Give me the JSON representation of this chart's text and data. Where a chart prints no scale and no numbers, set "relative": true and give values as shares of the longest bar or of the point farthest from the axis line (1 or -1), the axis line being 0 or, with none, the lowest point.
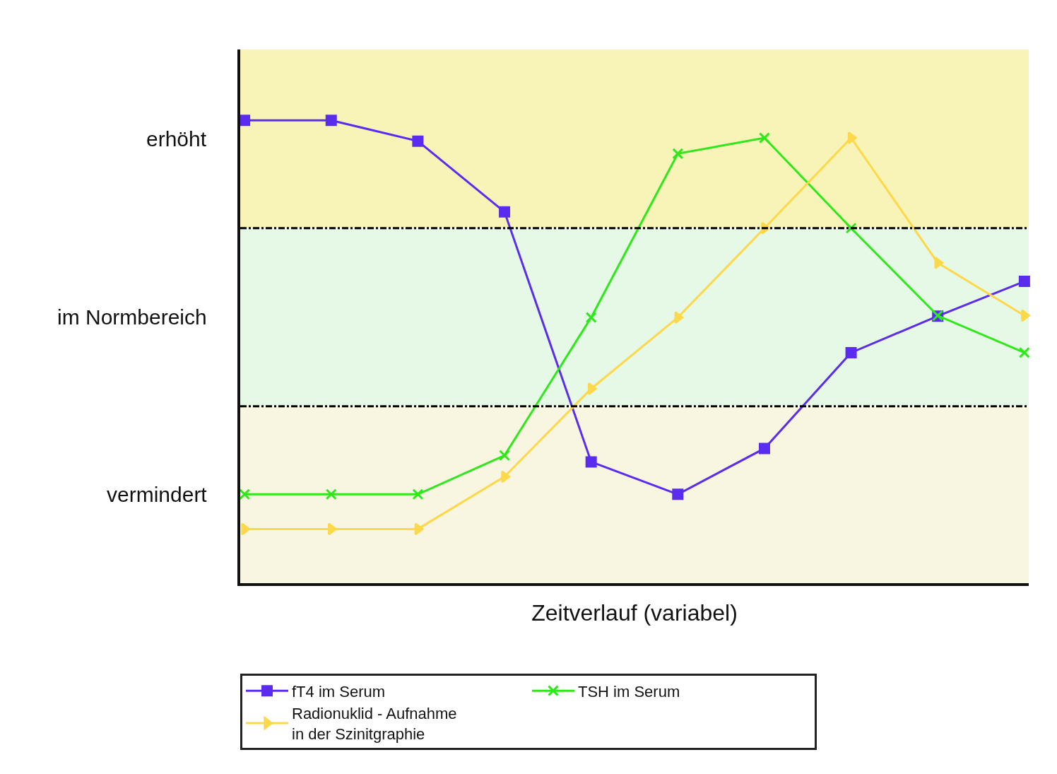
{
  "chart_data": {
    "type": "line",
    "relative": true,
    "xlabel": "Zeitverlauf (variabel)",
    "categories": [
      null,
      null,
      null,
      null,
      null,
      null,
      null,
      null,
      null,
      null
    ],
    "series": [
      {
        "name": "fT4 im Serum",
        "color": "#5a2cf0",
        "marker": "square",
        "values": [
          1.0,
          1.0,
          0.955,
          0.802,
          0.262,
          0.192,
          0.291,
          0.498,
          0.577,
          0.652
        ]
      },
      {
        "name": "TSH im Serum",
        "color": "#2ee81a",
        "marker": "cross",
        "values": [
          0.192,
          0.192,
          0.192,
          0.276,
          0.574,
          0.928,
          0.962,
          0.767,
          0.578,
          0.498
        ]
      },
      {
        "name": "Radionuklid - Aufnahme\nin der Szinitgraphie",
        "color": "#fdd84a",
        "marker": "triangle",
        "values": [
          0.117,
          0.117,
          0.117,
          0.23,
          0.42,
          0.574,
          0.767,
          0.962,
          0.692,
          0.578
        ]
      }
    ],
    "bands": [
      {
        "axis": "y",
        "from": 0,
        "to": 0.382,
        "label": "vermindert",
        "color": "#f8f5e0"
      },
      {
        "axis": "y",
        "from": 0.382,
        "to": 0.767,
        "label": "im Normbereich",
        "color": "#e6f8e6"
      },
      {
        "axis": "y",
        "from": 0.767,
        "to": 1.153,
        "label": "erhöht",
        "color": "#f8f4b8"
      }
    ],
    "ref_lines": [
      {
        "axis": "y",
        "value": 0.382,
        "line_style": "dashdot",
        "color": "#000000"
      },
      {
        "axis": "y",
        "value": 0.767,
        "line_style": "dashdot",
        "color": "#000000"
      }
    ],
    "grid": false,
    "legend": "bottom"
  }
}
